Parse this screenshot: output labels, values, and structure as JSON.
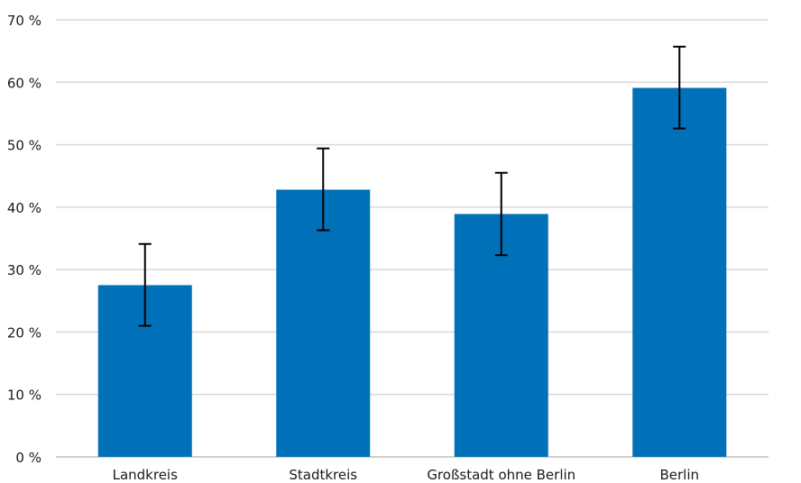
{
  "chart_data": {
    "type": "bar",
    "title": "",
    "xlabel": "",
    "ylabel": "",
    "categories": [
      "Landkreis",
      "Stadtkreis",
      "Großstadt ohne Berlin",
      "Berlin"
    ],
    "values": [
      27.5,
      42.8,
      38.9,
      59.1
    ],
    "error_low": [
      21.0,
      36.3,
      32.3,
      52.6
    ],
    "error_high": [
      34.1,
      49.4,
      45.5,
      65.7
    ],
    "ylim": [
      0,
      70
    ],
    "y_ticks": [
      0,
      10,
      20,
      30,
      40,
      50,
      60,
      70
    ],
    "y_tick_labels": [
      "0 %",
      "10 %",
      "20 %",
      "30 %",
      "40 %",
      "50 %",
      "60 %",
      "70 %"
    ],
    "grid": true,
    "bar_color": "#0070b8",
    "error_bar_color": "#000000"
  }
}
